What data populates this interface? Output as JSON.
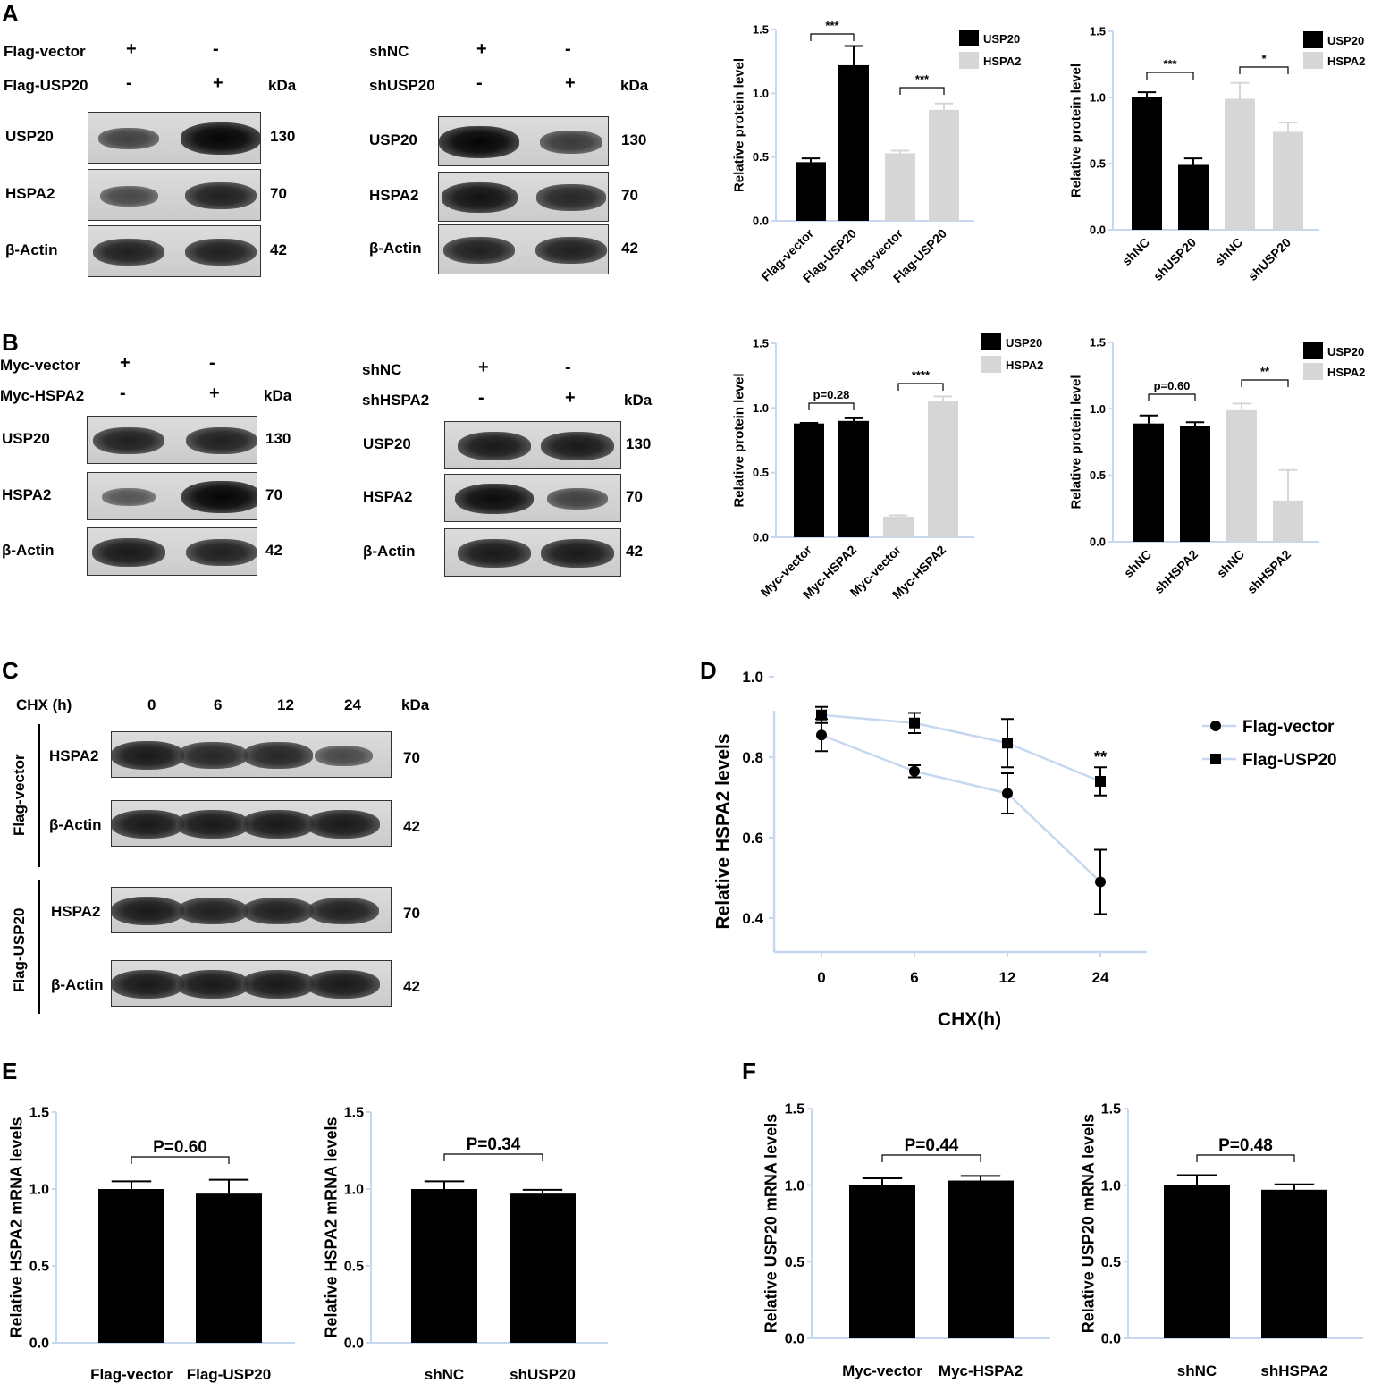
{
  "panels": {
    "A": "A",
    "B": "B",
    "C": "C",
    "D": "D",
    "E": "E",
    "F": "F"
  },
  "kda": "kDa",
  "blotA1": {
    "rows": [
      {
        "label": "Flag-vector",
        "marks": [
          "+",
          "-"
        ]
      },
      {
        "label": "Flag-USP20",
        "marks": [
          "-",
          "+"
        ]
      }
    ],
    "bands": [
      {
        "label": "USP20",
        "kda": "130",
        "intensity": [
          0.55,
          1.0
        ]
      },
      {
        "label": "HSPA2",
        "kda": "70",
        "intensity": [
          0.5,
          0.8
        ]
      },
      {
        "label": "β-Actin",
        "kda": "42",
        "intensity": [
          0.8,
          0.8
        ]
      }
    ]
  },
  "blotA2": {
    "rows": [
      {
        "label": "shNC",
        "marks": [
          "+",
          "-"
        ]
      },
      {
        "label": "shUSP20",
        "marks": [
          "-",
          "+"
        ]
      }
    ],
    "bands": [
      {
        "label": "USP20",
        "kda": "130",
        "intensity": [
          1.0,
          0.6
        ]
      },
      {
        "label": "HSPA2",
        "kda": "70",
        "intensity": [
          0.9,
          0.75
        ]
      },
      {
        "label": "β-Actin",
        "kda": "42",
        "intensity": [
          0.8,
          0.8
        ]
      }
    ]
  },
  "blotB1": {
    "rows": [
      {
        "label": "Myc-vector",
        "marks": [
          "+",
          "-"
        ]
      },
      {
        "label": "Myc-HSPA2",
        "marks": [
          "-",
          "+"
        ]
      }
    ],
    "bands": [
      {
        "label": "USP20",
        "kda": "130",
        "intensity": [
          0.8,
          0.8
        ]
      },
      {
        "label": "HSPA2",
        "kda": "70",
        "intensity": [
          0.4,
          1.0
        ]
      },
      {
        "label": "β-Actin",
        "kda": "42",
        "intensity": [
          0.85,
          0.8
        ]
      }
    ]
  },
  "blotB2": {
    "rows": [
      {
        "label": "shNC",
        "marks": [
          "+",
          "-"
        ]
      },
      {
        "label": "shHSPA2",
        "marks": [
          "-",
          "+"
        ]
      }
    ],
    "bands": [
      {
        "label": "USP20",
        "kda": "130",
        "intensity": [
          0.85,
          0.85
        ]
      },
      {
        "label": "HSPA2",
        "kda": "70",
        "intensity": [
          0.95,
          0.55
        ]
      },
      {
        "label": "β-Actin",
        "kda": "42",
        "intensity": [
          0.85,
          0.85
        ]
      }
    ]
  },
  "blotC": {
    "header": "CHX  (h)",
    "times": [
      "0",
      "6",
      "12",
      "24"
    ],
    "groups": [
      {
        "name": "Flag-vector",
        "bands": [
          {
            "label": "HSPA2",
            "kda": "70",
            "intensity": [
              0.85,
              0.75,
              0.75,
              0.5
            ]
          },
          {
            "label": "β-Actin",
            "kda": "42",
            "intensity": [
              0.85,
              0.85,
              0.85,
              0.85
            ]
          }
        ]
      },
      {
        "name": "Flag-USP20",
        "bands": [
          {
            "label": "HSPA2",
            "kda": "70",
            "intensity": [
              0.85,
              0.8,
              0.8,
              0.8
            ]
          },
          {
            "label": "β-Actin",
            "kda": "42",
            "intensity": [
              0.85,
              0.85,
              0.85,
              0.85
            ]
          }
        ]
      }
    ]
  },
  "colors": {
    "black": "#000000",
    "gray": "#d6d6d6",
    "axis": "#c5d8f0",
    "line": "#c5d8f0"
  },
  "chart_data": [
    {
      "id": "A3",
      "type": "bar",
      "ylabel": "Relative protein level",
      "ylim": [
        0,
        1.5
      ],
      "yticks": [
        "0.0",
        "0.5",
        "1.0",
        "1.5"
      ],
      "categories": [
        "Flag-vector",
        "Flag-USP20",
        "Flag-vector",
        "Flag-USP20"
      ],
      "values": [
        0.46,
        1.22,
        0.53,
        0.87
      ],
      "errors": [
        0.03,
        0.15,
        0.02,
        0.05
      ],
      "colors": [
        "black",
        "black",
        "gray",
        "gray"
      ],
      "legend": [
        "USP20",
        "HSPA2"
      ],
      "sig": [
        {
          "from": 0,
          "to": 1,
          "text": "***"
        },
        {
          "from": 2,
          "to": 3,
          "text": "***"
        }
      ]
    },
    {
      "id": "A4",
      "type": "bar",
      "ylabel": "Relative protein level",
      "ylim": [
        0,
        1.5
      ],
      "yticks": [
        "0.0",
        "0.5",
        "1.0",
        "1.5"
      ],
      "categories": [
        "shNC",
        "shUSP20",
        "shNC",
        "shUSP20"
      ],
      "values": [
        1.0,
        0.49,
        0.99,
        0.74
      ],
      "errors": [
        0.04,
        0.05,
        0.12,
        0.07
      ],
      "colors": [
        "black",
        "black",
        "gray",
        "gray"
      ],
      "legend": [
        "USP20",
        "HSPA2"
      ],
      "sig": [
        {
          "from": 0,
          "to": 1,
          "text": "***"
        },
        {
          "from": 2,
          "to": 3,
          "text": "*"
        }
      ]
    },
    {
      "id": "B3",
      "type": "bar",
      "ylabel": "Relative protein level",
      "ylim": [
        0,
        1.5
      ],
      "yticks": [
        "0.0",
        "0.5",
        "1.0",
        "1.5"
      ],
      "categories": [
        "Myc-vector",
        "Myc-HSPA2",
        "Myc-vector",
        "Myc-HSPA2"
      ],
      "values": [
        0.88,
        0.9,
        0.16,
        1.05
      ],
      "errors": [
        0.005,
        0.02,
        0.01,
        0.04
      ],
      "colors": [
        "black",
        "black",
        "gray",
        "gray"
      ],
      "legend": [
        "USP20",
        "HSPA2"
      ],
      "sig": [
        {
          "from": 0,
          "to": 1,
          "text": "p=0.28"
        },
        {
          "from": 2,
          "to": 3,
          "text": "****"
        }
      ]
    },
    {
      "id": "B4",
      "type": "bar",
      "ylabel": "Relative protein level",
      "ylim": [
        0,
        1.5
      ],
      "yticks": [
        "0.0",
        "0.5",
        "1.0",
        "1.5"
      ],
      "categories": [
        "shNC",
        "shHSPA2",
        "shNC",
        "shHSPA2"
      ],
      "values": [
        0.89,
        0.87,
        0.99,
        0.31
      ],
      "errors": [
        0.06,
        0.03,
        0.05,
        0.23
      ],
      "colors": [
        "black",
        "black",
        "gray",
        "gray"
      ],
      "legend": [
        "USP20",
        "HSPA2"
      ],
      "sig": [
        {
          "from": 0,
          "to": 1,
          "text": "p=0.60"
        },
        {
          "from": 2,
          "to": 3,
          "text": "**"
        }
      ]
    },
    {
      "id": "D",
      "type": "line",
      "xlabel": "CHX(h)",
      "ylabel": "Relative HSPA2 levels",
      "x": [
        "0",
        "6",
        "12",
        "24"
      ],
      "ylim": [
        0.4,
        1.0
      ],
      "yticks": [
        "0.4",
        "0.6",
        "0.8",
        "1.0"
      ],
      "series": [
        {
          "name": "Flag-vector",
          "marker": "circle",
          "values": [
            0.855,
            0.765,
            0.71,
            0.49
          ],
          "errors": [
            0.04,
            0.015,
            0.05,
            0.08
          ]
        },
        {
          "name": "Flag-USP20",
          "marker": "square",
          "values": [
            0.905,
            0.885,
            0.835,
            0.74
          ],
          "errors": [
            0.02,
            0.025,
            0.06,
            0.035
          ]
        }
      ],
      "annotations": [
        {
          "x": "24",
          "text": "**"
        }
      ]
    },
    {
      "id": "E1",
      "type": "bar",
      "ylabel": "Relative HSPA2 mRNA levels",
      "ylim": [
        0,
        1.5
      ],
      "yticks": [
        "0.0",
        "0.5",
        "1.0",
        "1.5"
      ],
      "categories": [
        "Flag-vector",
        "Flag-USP20"
      ],
      "values": [
        1.0,
        0.97
      ],
      "errors": [
        0.05,
        0.09
      ],
      "colors": [
        "black",
        "black"
      ],
      "sig": [
        {
          "from": 0,
          "to": 1,
          "text": "P=0.60"
        }
      ]
    },
    {
      "id": "E2",
      "type": "bar",
      "ylabel": "Relative HSPA2 mRNA levels",
      "ylim": [
        0,
        1.5
      ],
      "yticks": [
        "0.0",
        "0.5",
        "1.0",
        "1.5"
      ],
      "categories": [
        "shNC",
        "shUSP20"
      ],
      "values": [
        1.0,
        0.97
      ],
      "errors": [
        0.05,
        0.025
      ],
      "colors": [
        "black",
        "black"
      ],
      "sig": [
        {
          "from": 0,
          "to": 1,
          "text": "P=0.34"
        }
      ]
    },
    {
      "id": "F1",
      "type": "bar",
      "ylabel": "Relative USP20 mRNA levels",
      "ylim": [
        0,
        1.5
      ],
      "yticks": [
        "0.0",
        "0.5",
        "1.0",
        "1.5"
      ],
      "categories": [
        "Myc-vector",
        "Myc-HSPA2"
      ],
      "values": [
        1.0,
        1.03
      ],
      "errors": [
        0.045,
        0.03
      ],
      "colors": [
        "black",
        "black"
      ],
      "sig": [
        {
          "from": 0,
          "to": 1,
          "text": "P=0.44"
        }
      ]
    },
    {
      "id": "F2",
      "type": "bar",
      "ylabel": "Relative USP20 mRNA levels",
      "ylim": [
        0,
        1.5
      ],
      "yticks": [
        "0.0",
        "0.5",
        "1.0",
        "1.5"
      ],
      "categories": [
        "shNC",
        "shHSPA2"
      ],
      "values": [
        1.0,
        0.97
      ],
      "errors": [
        0.065,
        0.035
      ],
      "colors": [
        "black",
        "black"
      ],
      "sig": [
        {
          "from": 0,
          "to": 1,
          "text": "P=0.48"
        }
      ]
    }
  ]
}
